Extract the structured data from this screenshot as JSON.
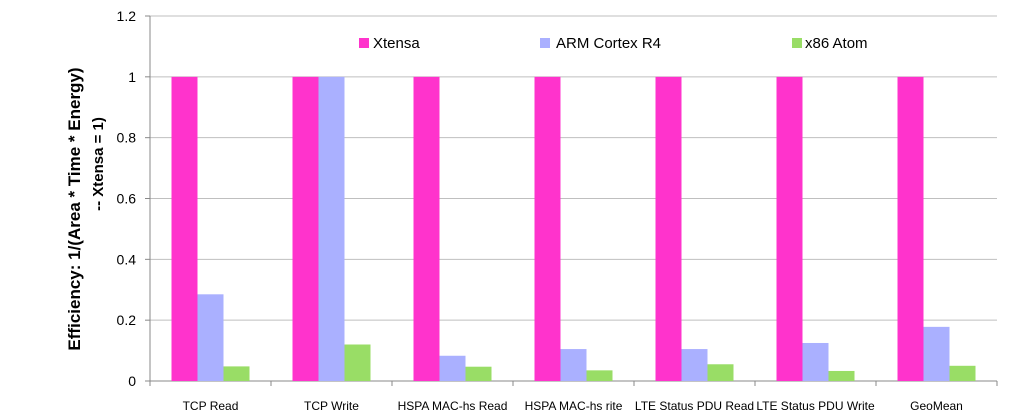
{
  "chart_data": {
    "type": "bar",
    "categories": [
      "TCP Read",
      "TCP Write",
      "HSPA MAC-hs Read",
      "HSPA MAC-hs rite",
      "LTE Status PDU Read",
      "LTE Status PDU Write",
      "GeoMean"
    ],
    "series": [
      {
        "name": "Xtensa",
        "color": "#ff33cc",
        "values": [
          1,
          1,
          1,
          1,
          1,
          1,
          1
        ]
      },
      {
        "name": "ARM Cortex R4",
        "color": "#aab0ff",
        "values": [
          0.285,
          1,
          0.083,
          0.105,
          0.105,
          0.125,
          0.178
        ]
      },
      {
        "name": "x86 Atom",
        "color": "#99dd66",
        "values": [
          0.048,
          0.12,
          0.047,
          0.035,
          0.055,
          0.033,
          0.05
        ]
      }
    ],
    "ylabel_line1": "Efficiency:  1/(Area * Time * Energy)",
    "ylabel_line2": "-- Xtensa = 1)",
    "ylim": [
      0,
      1.2
    ],
    "yticks": [
      "0",
      "0.2",
      "0.4",
      "0.6",
      "0.8",
      "1",
      "1.2"
    ],
    "ytick_values": [
      0,
      0.2,
      0.4,
      0.6,
      0.8,
      1,
      1.2
    ],
    "grid": true,
    "legend_position": "top-center"
  }
}
